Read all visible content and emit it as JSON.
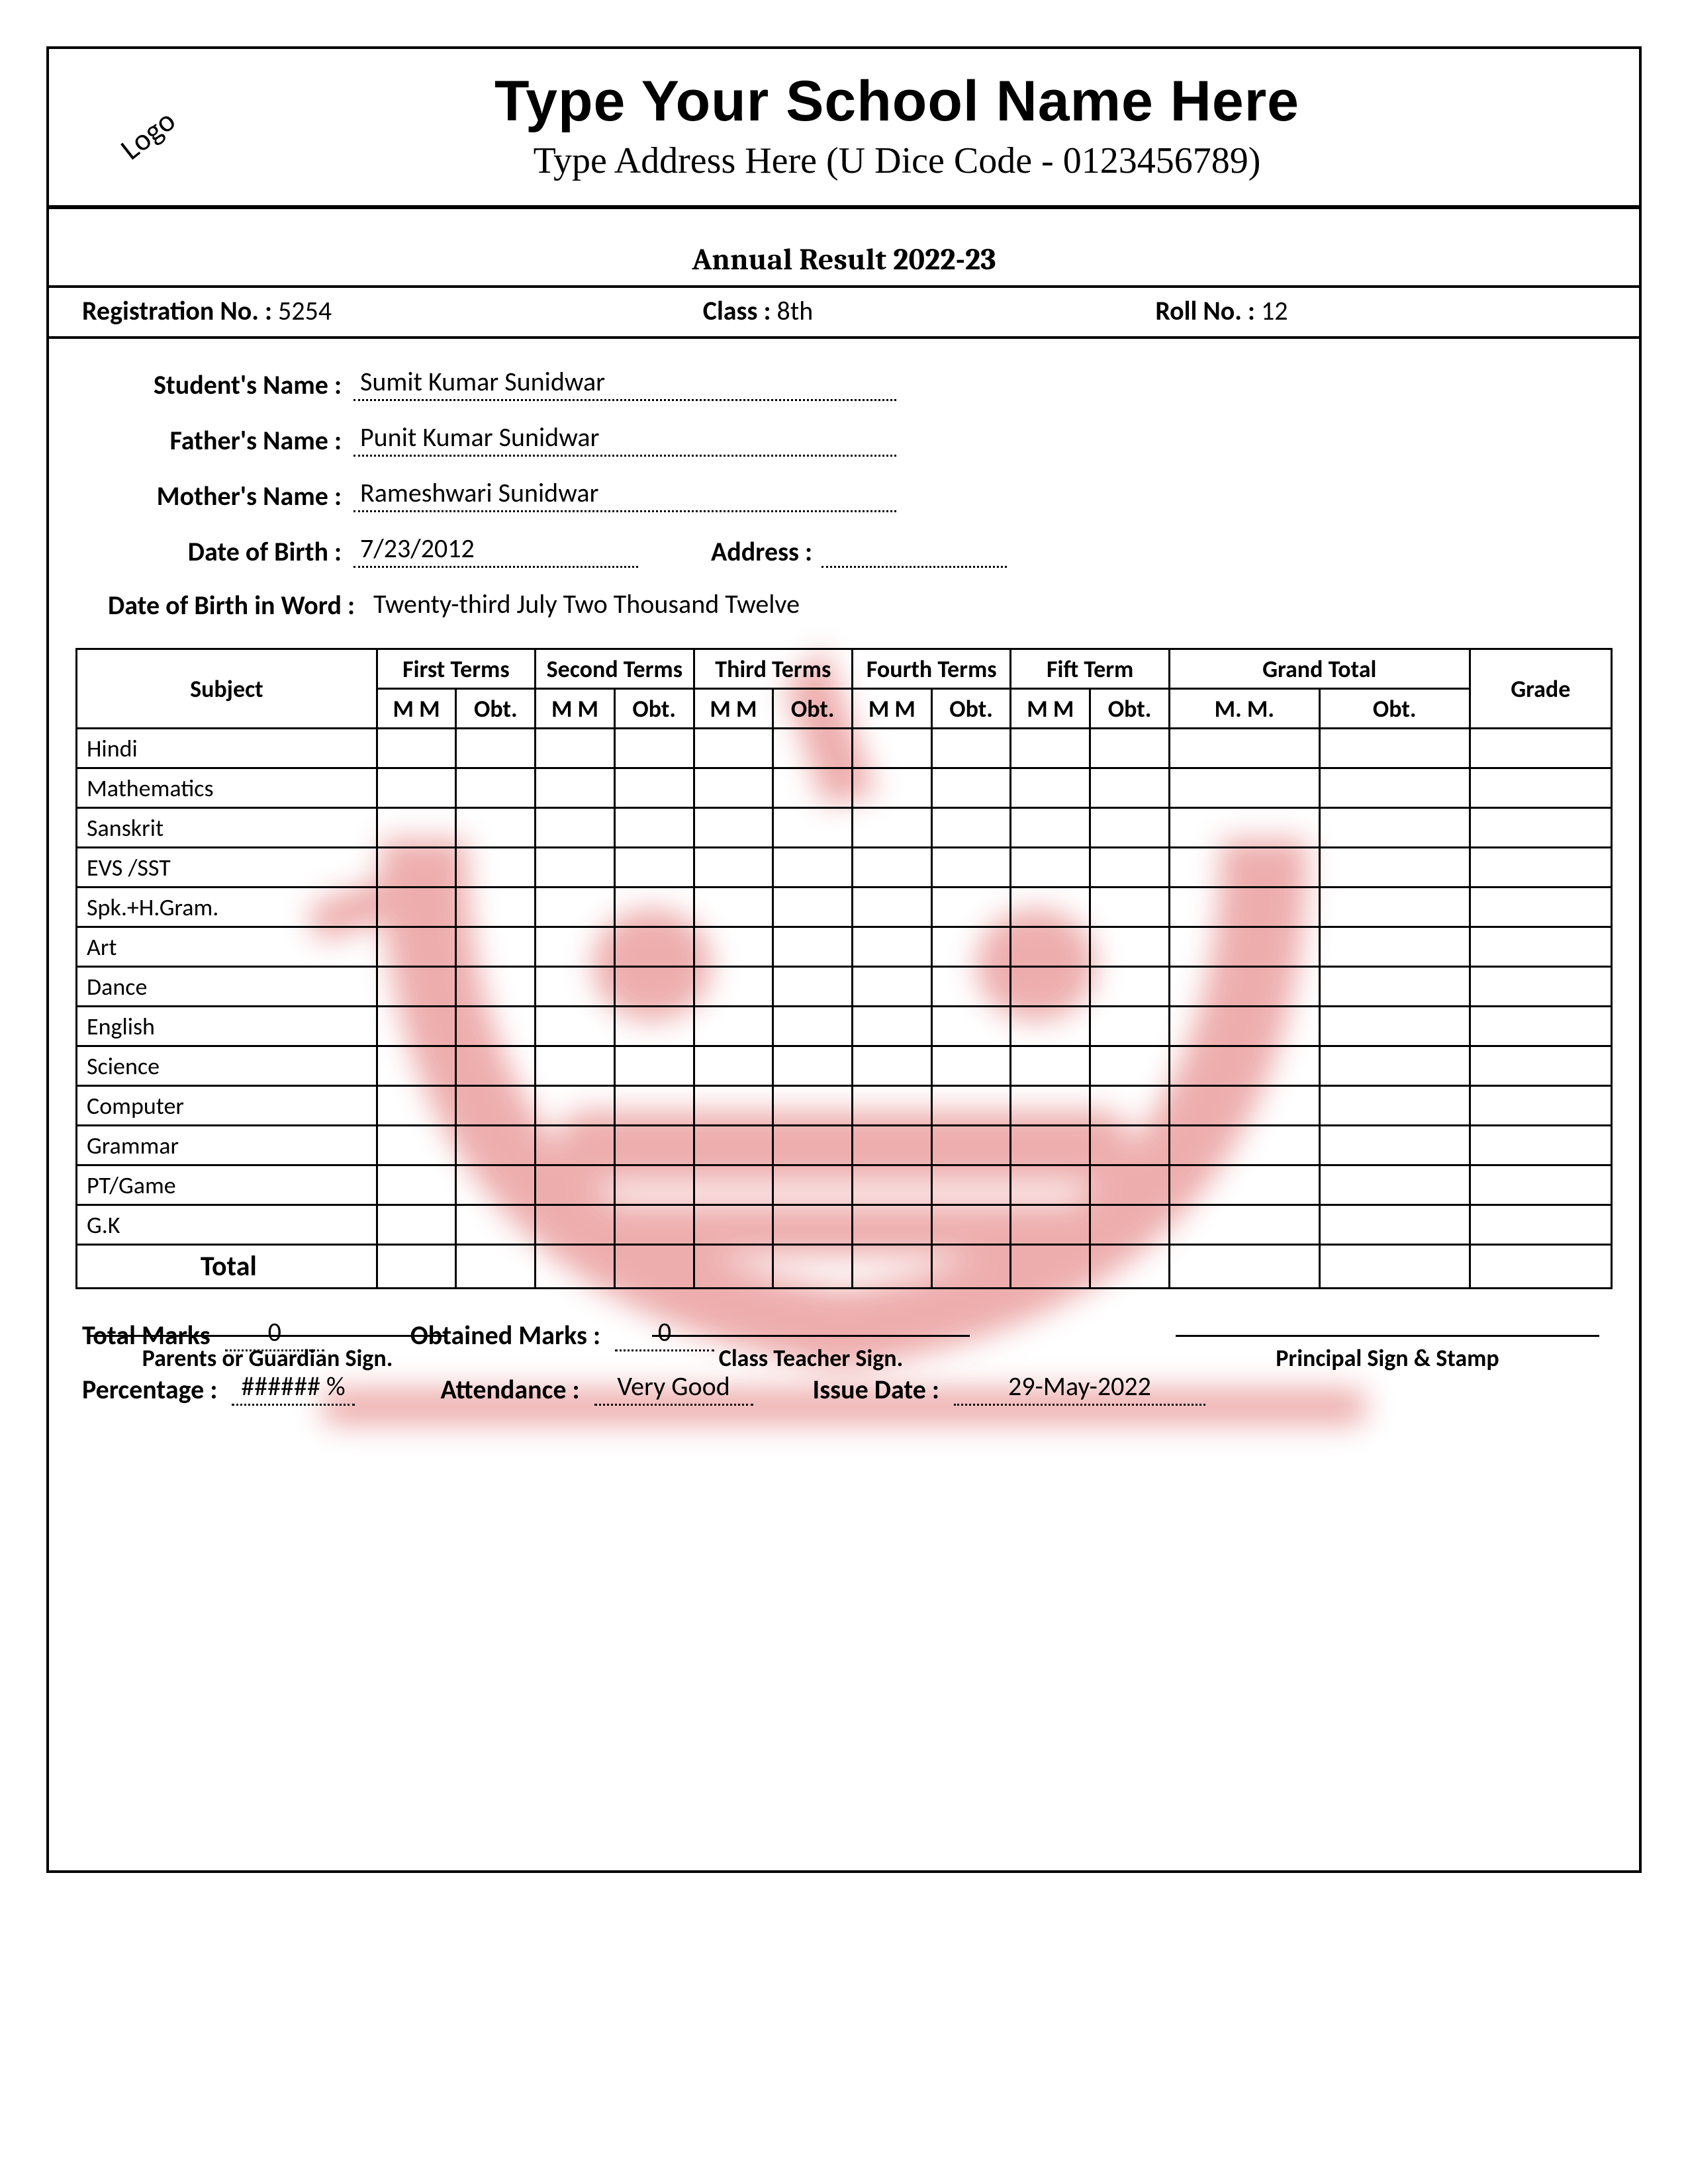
{
  "header": {
    "logo_text": "Logo",
    "school_name": "Type Your School Name Here",
    "address_line": "Type Address Here (U Dice Code - 0123456789)"
  },
  "title": "Annual Result 2022-23",
  "reg": {
    "reg_label": "Registration No. :",
    "reg_value": "5254",
    "class_label": "Class :",
    "class_value": "8th",
    "roll_label": "Roll No. :",
    "roll_value": "12"
  },
  "student": {
    "name_label": "Student's Name :",
    "name_value": "Sumit Kumar Sunidwar",
    "father_label": "Father's Name :",
    "father_value": "Punit Kumar Sunidwar",
    "mother_label": "Mother's Name :",
    "mother_value": "Rameshwari Sunidwar",
    "dob_label": "Date of Birth :",
    "dob_value": "7/23/2012",
    "address_label": "Address :",
    "address_value": "",
    "dob_word_label": "Date of Birth in Word :",
    "dob_word_value": "Twenty-third July Two Thousand Twelve"
  },
  "marks_table": {
    "header_subject": "Subject",
    "terms": [
      "First Terms",
      "Second Terms",
      "Third Terms",
      "Fourth Terms",
      "Fift Term"
    ],
    "grand_total": "Grand Total",
    "grade": "Grade",
    "sub_mm": "M M",
    "sub_obt": "Obt.",
    "sub_gmm": "M. M.",
    "sub_gobt": "Obt.",
    "subjects": [
      "Hindi",
      "Mathematics",
      "Sanskrit",
      "EVS /SST",
      "Spk.+H.Gram.",
      "Art",
      "Dance",
      "English",
      "Science",
      "Computer",
      "Grammar",
      "PT/Game",
      "G.K"
    ],
    "total_label": "Total"
  },
  "summary": {
    "total_marks_label": "Total Marks",
    "total_marks_value": "0",
    "obtained_label": "Obtained Marks :",
    "obtained_value": "0",
    "percentage_label": "Percentage :",
    "percentage_value": "###### %",
    "attendance_label": "Attendance :",
    "attendance_value": "Very Good",
    "issue_label": "Issue Date :",
    "issue_value": "29-May-2022"
  },
  "signatures": {
    "parent": "Parents or Guardian Sign.",
    "teacher": "Class Teacher Sign.",
    "principal": "Principal Sign & Stamp"
  },
  "styling": {
    "border_color": "#000000",
    "background": "#ffffff",
    "watermark_color": "#d94b4b",
    "watermark_opacity": 0.45,
    "title_font": "Arial Black",
    "body_font": "Calibri",
    "address_font": "Times New Roman",
    "school_name_fontsize": 86,
    "address_fontsize": 56,
    "title_fontsize": 46,
    "body_fontsize": 40,
    "table_fontsize": 36,
    "dotted_underline": true
  }
}
